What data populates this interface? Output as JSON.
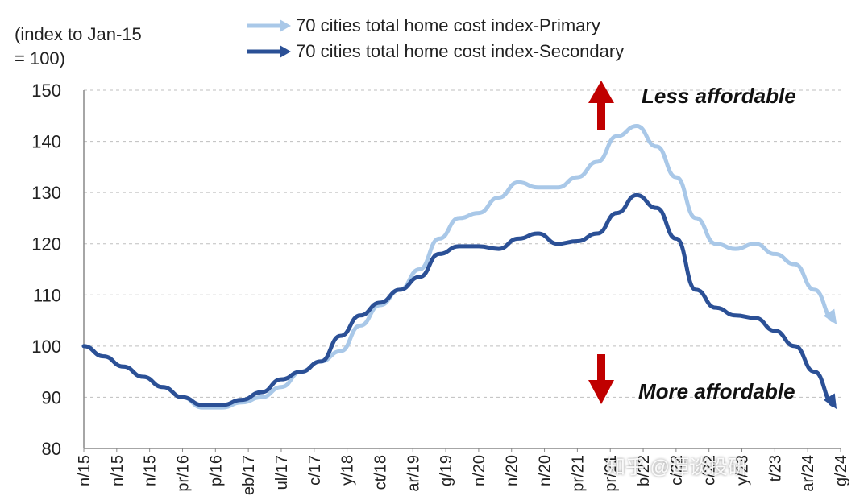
{
  "chart_data": {
    "type": "line",
    "ylabel": "(index to Jan-15 = 100)",
    "ylabel_lines": [
      "(index to Jan-15",
      "= 100)"
    ],
    "ylim": [
      80,
      150
    ],
    "yticks": [
      80,
      90,
      100,
      110,
      120,
      130,
      140,
      150
    ],
    "grid": true,
    "legend_position": "top-center",
    "x_tick_labels": [
      "n/15",
      "n/15",
      "n/15",
      "pr/16",
      "p/16",
      "eb/17",
      "ul/17",
      "c/17",
      "y/18",
      "ct/18",
      "ar/19",
      "g/19",
      "n/20",
      "n/20",
      "n/20",
      "pr/21",
      "pr/21",
      "b/22",
      "c/22",
      "c/22",
      "y/23",
      "t/23",
      "ar/24",
      "g/24"
    ],
    "x_period": {
      "start": "Jan-15",
      "end": "Aug-24"
    },
    "series": [
      {
        "name": "70 cities total home cost index-Primary",
        "color": "#a9c8e8",
        "values": [
          100,
          98,
          96,
          94,
          92,
          90,
          88,
          88,
          89,
          90,
          92,
          95,
          97,
          99,
          104,
          108,
          111,
          115,
          121,
          125,
          126,
          129,
          132,
          131,
          131,
          133,
          136,
          141,
          143,
          139,
          133,
          125,
          120,
          119,
          120,
          118,
          116,
          111,
          105
        ]
      },
      {
        "name": "70 cities total home cost index-Secondary",
        "color": "#2b5096",
        "values": [
          100,
          98,
          96,
          94,
          92,
          90,
          88.5,
          88.5,
          89.5,
          91,
          93.5,
          95,
          97,
          102,
          106,
          108.5,
          111,
          113.5,
          118,
          119.5,
          119.5,
          119,
          121,
          122,
          120,
          120.5,
          122,
          126,
          129.5,
          127,
          121,
          111,
          107.5,
          106,
          105.5,
          103,
          100,
          95,
          88.5
        ]
      }
    ]
  },
  "annotations": {
    "up": "Less affordable",
    "down": "More affordable"
  },
  "watermark": "知乎 @谭谈投研",
  "colors": {
    "arrow": "#c00000",
    "grid": "#bfbfbf",
    "axis": "#888888"
  }
}
